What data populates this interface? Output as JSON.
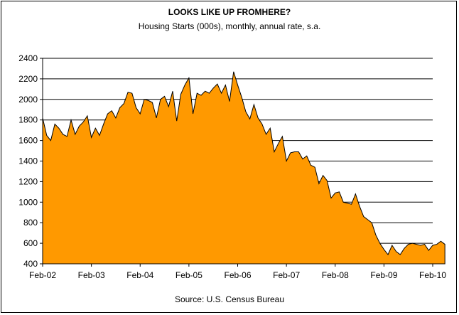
{
  "chart_data": {
    "type": "area",
    "title": "LOOKS LIKE UP FROMHERE?",
    "subtitle": "Housing Starts (000s), monthly, annual rate, s.a.",
    "source": "Source: U.S. Census Bureau",
    "xlabel": "",
    "ylabel": "",
    "ylim": [
      400,
      2400
    ],
    "yticks": [
      400,
      600,
      800,
      1000,
      1200,
      1400,
      1600,
      1800,
      2000,
      2200,
      2400
    ],
    "xticks": [
      "Feb-02",
      "Feb-03",
      "Feb-04",
      "Feb-05",
      "Feb-06",
      "Feb-07",
      "Feb-08",
      "Feb-09",
      "Feb-10"
    ],
    "grid": true,
    "fill_color": "#FF9900",
    "series": [
      {
        "x_start": "Feb-02",
        "frequency": "monthly",
        "values": [
          1820,
          1650,
          1600,
          1760,
          1720,
          1660,
          1640,
          1800,
          1660,
          1740,
          1780,
          1840,
          1630,
          1720,
          1650,
          1760,
          1860,
          1890,
          1820,
          1920,
          1960,
          2070,
          2060,
          1920,
          1860,
          2000,
          1990,
          1970,
          1820,
          2000,
          2030,
          1930,
          2080,
          1790,
          2050,
          2140,
          2210,
          1860,
          2060,
          2040,
          2080,
          2060,
          2110,
          2150,
          2060,
          2140,
          1980,
          2270,
          2140,
          2020,
          1880,
          1810,
          1950,
          1820,
          1760,
          1660,
          1720,
          1490,
          1570,
          1640,
          1400,
          1480,
          1490,
          1490,
          1420,
          1450,
          1360,
          1340,
          1180,
          1260,
          1210,
          1040,
          1090,
          1100,
          1000,
          990,
          980,
          1080,
          960,
          860,
          830,
          800,
          680,
          600,
          540,
          490,
          580,
          520,
          490,
          550,
          590,
          600,
          590,
          580,
          590,
          530,
          580,
          590,
          620,
          590
        ]
      }
    ]
  }
}
